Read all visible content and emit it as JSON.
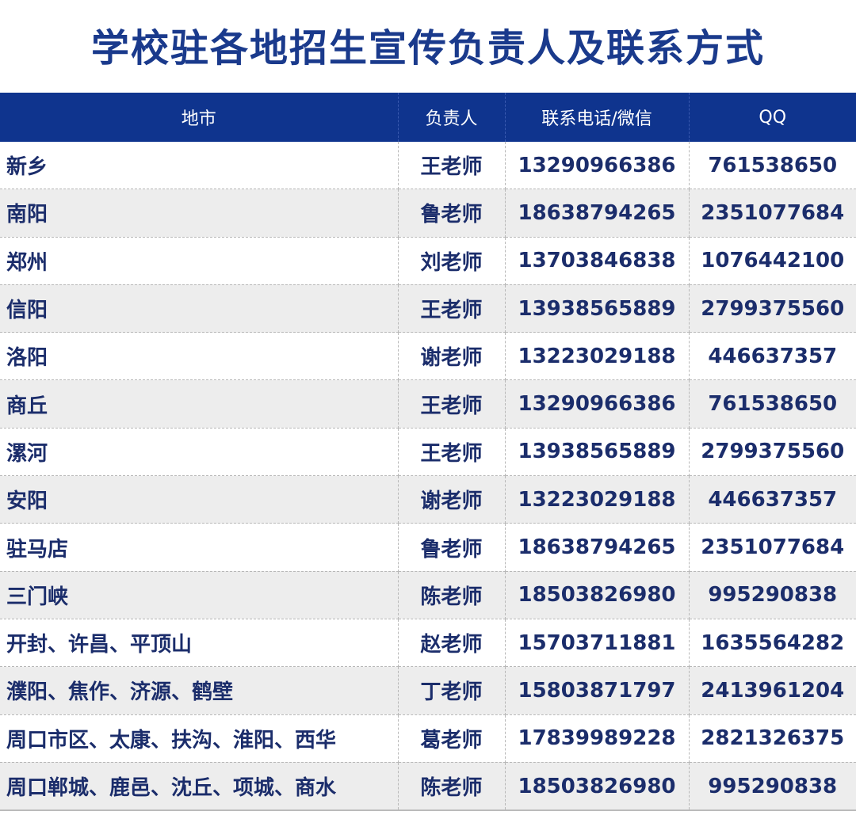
{
  "title": "学校驻各地招生宣传负责人及联系方式",
  "headers": [
    "地市",
    "负责人",
    "联系电话/微信",
    "QQ"
  ],
  "rows": [
    [
      "新乡",
      "王老师",
      "13290966386",
      "761538650"
    ],
    [
      "南阳",
      "鲁老师",
      "18638794265",
      "2351077684"
    ],
    [
      "郑州",
      "刘老师",
      "13703846838",
      "1076442100"
    ],
    [
      "信阳",
      "王老师",
      "13938565889",
      "2799375560"
    ],
    [
      "洛阳",
      "谢老师",
      "13223029188",
      "446637357"
    ],
    [
      "商丘",
      "王老师",
      "13290966386",
      "761538650"
    ],
    [
      "漯河",
      "王老师",
      "13938565889",
      "2799375560"
    ],
    [
      "安阳",
      "谢老师",
      "13223029188",
      "446637357"
    ],
    [
      "驻马店",
      "鲁老师",
      "18638794265",
      "2351077684"
    ],
    [
      "三门峡",
      "陈老师",
      "18503826980",
      "995290838"
    ],
    [
      "开封、许昌、平顶山",
      "赵老师",
      "15703711881",
      "1635564282"
    ],
    [
      "濮阳、焦作、济源、鹤壁",
      "丁老师",
      "15803871797",
      "2413961204"
    ],
    [
      "周口市区、太康、扶沟、淮阳、西华",
      "葛老师",
      "17839989228",
      "2821326375"
    ],
    [
      "周口郸城、鹿邑、沈丘、项城、商水",
      "陈老师",
      "18503826980",
      "995290838"
    ]
  ]
}
